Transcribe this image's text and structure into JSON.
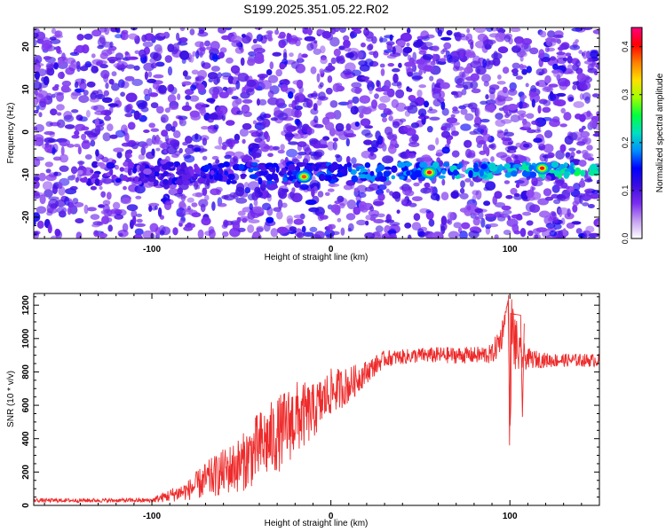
{
  "title": "S199.2025.351.05.22.R02",
  "colors": {
    "line": "#ee2a2a",
    "spectrogram_background": "#ffffff",
    "colormap": [
      "#ffffff",
      "#c4a0f0",
      "#7b2cf0",
      "#3a0ee0",
      "#0000ff",
      "#0090ff",
      "#00e0c0",
      "#00ff40",
      "#a0ff00",
      "#ffe000",
      "#ff8000",
      "#ff0000",
      "#ff0080"
    ]
  },
  "chart_data": [
    {
      "type": "heatmap",
      "title": "S199.2025.351.05.22.R02",
      "xlabel": "Height of straight line (km)",
      "ylabel": "Frequency (Hz)",
      "xlim": [
        -166,
        150
      ],
      "ylim": [
        -25,
        24.5
      ],
      "x_ticks": [
        -100,
        0,
        100
      ],
      "y_ticks": [
        -20,
        -10,
        0,
        10,
        20
      ],
      "x_tick_labels": [
        "-100",
        "0",
        "100"
      ],
      "y_tick_labels": [
        "-20",
        "-10",
        "0",
        "10",
        "20"
      ],
      "colorbar": {
        "label": "Normalized spectral amplitude",
        "range": [
          0,
          0.44
        ],
        "ticks": [
          0,
          0.1,
          0.2,
          0.3,
          0.4
        ],
        "tick_labels": [
          "0.0",
          "0.1",
          "0.2",
          "0.3",
          "0.4"
        ]
      },
      "signal_band": {
        "frequency_center_hz": -10,
        "x_start_km": -140,
        "x_end_km": 150,
        "peaks": [
          {
            "x": -15,
            "y": -10.5,
            "value": 0.38
          },
          {
            "x": 55,
            "y": -9.5,
            "value": 0.42
          },
          {
            "x": 118,
            "y": -8.5,
            "value": 0.4
          }
        ]
      },
      "background_level": [
        0.02,
        0.07
      ]
    },
    {
      "type": "line",
      "xlabel": "Height of straight line (km)",
      "ylabel": "SNR (10 * v/v)",
      "xlim": [
        -166,
        150
      ],
      "ylim": [
        0,
        1270
      ],
      "x_ticks": [
        -100,
        0,
        100
      ],
      "y_ticks": [
        0,
        200,
        400,
        600,
        800,
        1000,
        1200
      ],
      "x_tick_labels": [
        "-100",
        "0",
        "100"
      ],
      "y_tick_labels": [
        "0",
        "200",
        "400",
        "600",
        "800",
        "1000",
        "1200"
      ],
      "series": [
        {
          "color": "#ee2a2a",
          "x": [
            -166,
            -140,
            -120,
            -100,
            -90,
            -80,
            -70,
            -60,
            -50,
            -40,
            -30,
            -20,
            -10,
            0,
            10,
            20,
            30,
            40,
            50,
            60,
            70,
            80,
            90,
            95,
            99,
            100,
            101,
            105,
            110,
            120,
            130,
            140,
            150
          ],
          "y": [
            30,
            30,
            30,
            30,
            60,
            90,
            150,
            200,
            250,
            350,
            420,
            520,
            560,
            680,
            720,
            800,
            880,
            890,
            900,
            900,
            900,
            900,
            905,
            1000,
            1230,
            380,
            1050,
            900,
            880,
            870,
            870,
            870,
            870
          ],
          "noise": [
            12,
            12,
            12,
            14,
            40,
            60,
            110,
            140,
            170,
            220,
            230,
            230,
            170,
            140,
            110,
            70,
            50,
            45,
            45,
            50,
            50,
            50,
            60,
            100,
            0,
            0,
            250,
            120,
            60,
            45,
            40,
            40,
            40
          ]
        }
      ]
    }
  ]
}
